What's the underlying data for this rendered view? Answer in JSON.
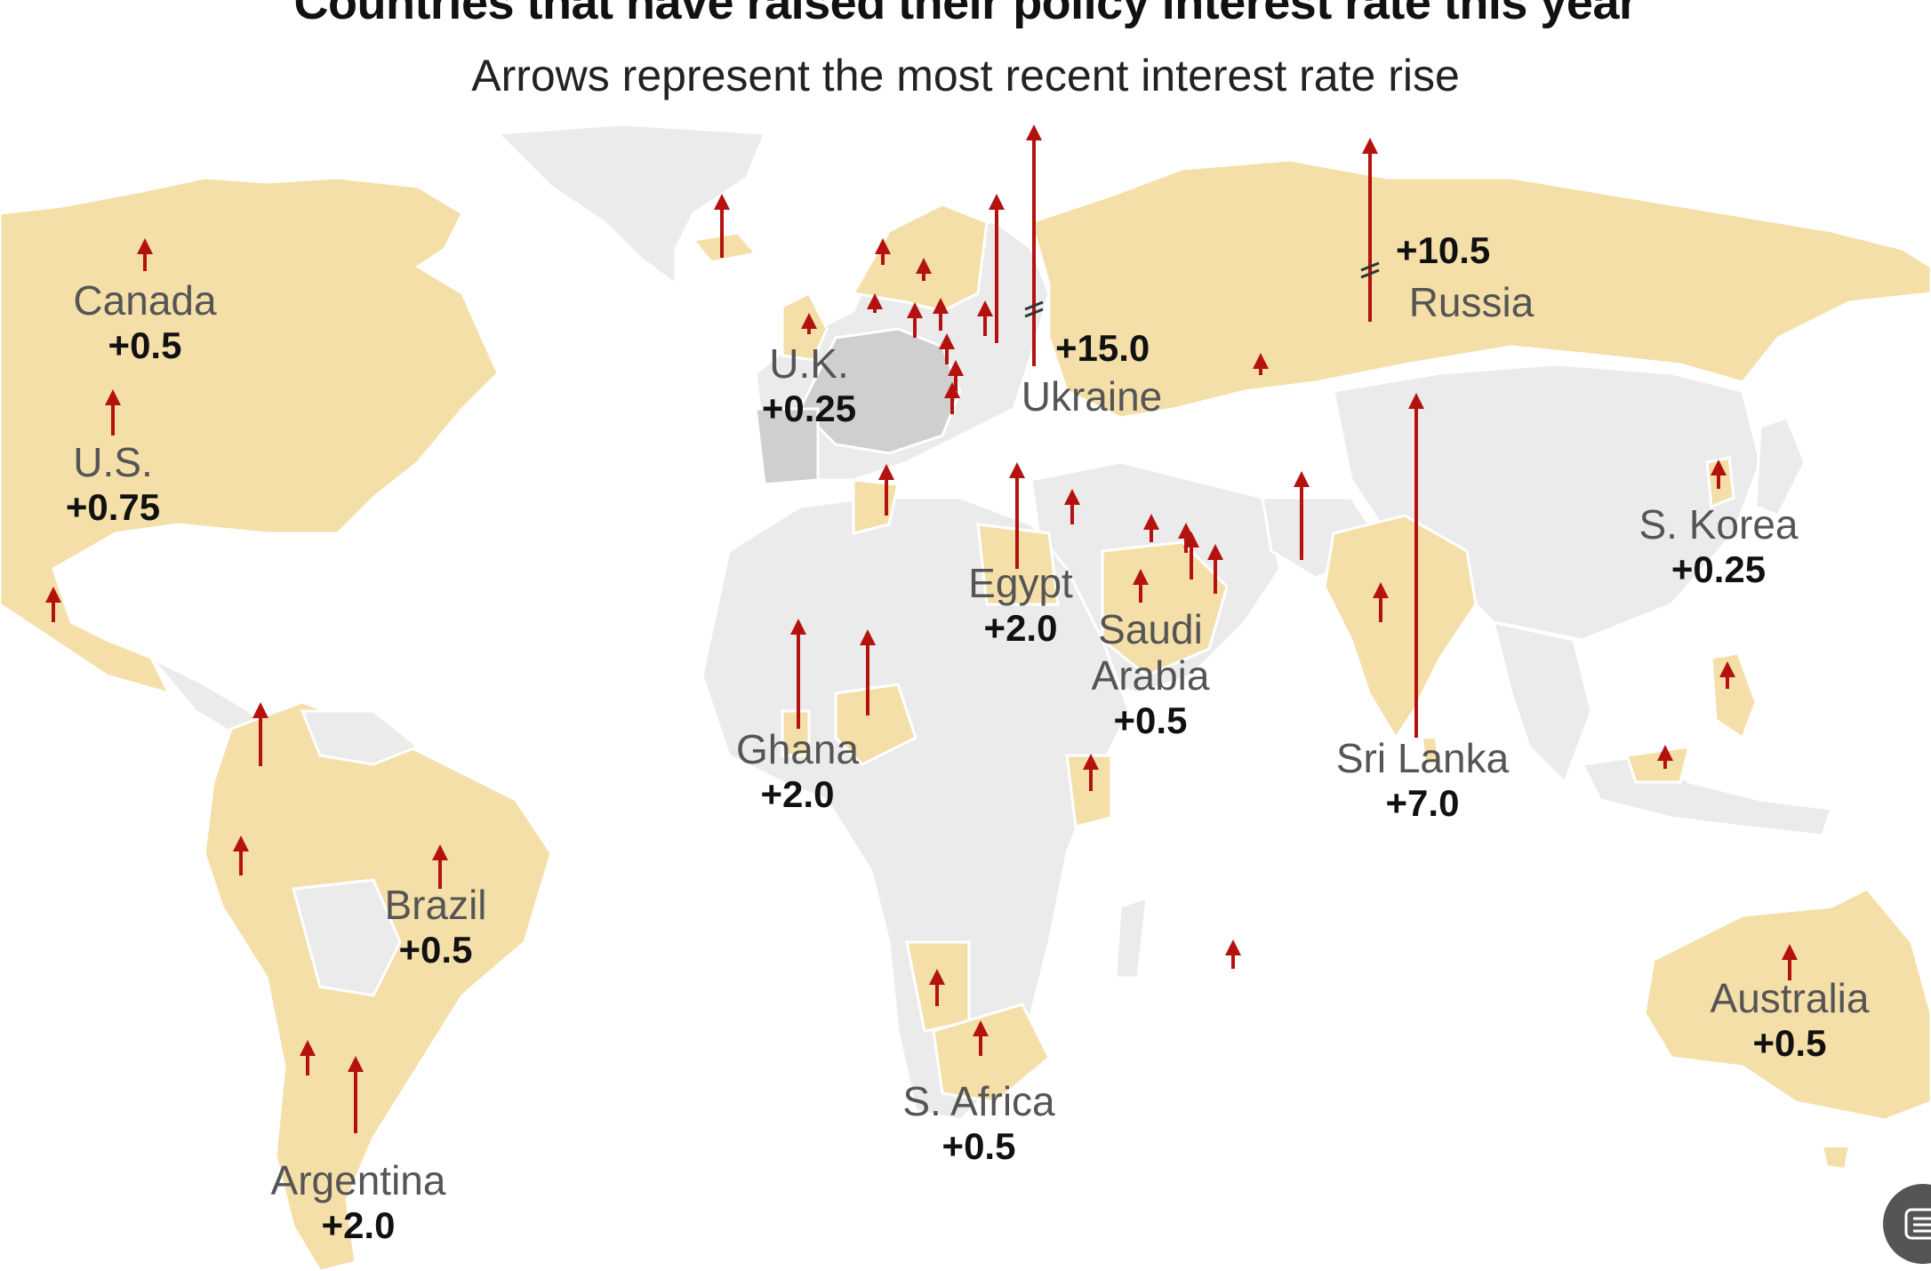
{
  "title": "Countries that have raised their policy interest rate this year",
  "subtitle": "Arrows represent the most recent interest rate rise",
  "colors": {
    "raised": "#f5dfa8",
    "not_raised": "#ebebeb",
    "euro_area": "#cfcfcf",
    "arrow": "#b3120f",
    "ocean": "#ffffff"
  },
  "countries": [
    {
      "id": "canada",
      "name": "Canada",
      "value": "+0.5"
    },
    {
      "id": "us",
      "name": "U.S.",
      "value": "+0.75"
    },
    {
      "id": "uk",
      "name": "U.K.",
      "value": "+0.25"
    },
    {
      "id": "ukraine",
      "name": "Ukraine",
      "value": "+15.0"
    },
    {
      "id": "russia",
      "name": "Russia",
      "value": "+10.5"
    },
    {
      "id": "skorea",
      "name": "S. Korea",
      "value": "+0.25"
    },
    {
      "id": "egypt",
      "name": "Egypt",
      "value": "+2.0"
    },
    {
      "id": "saudi",
      "name": "Saudi\nArabia",
      "value": "+0.5"
    },
    {
      "id": "ghana",
      "name": "Ghana",
      "value": "+2.0"
    },
    {
      "id": "srilanka",
      "name": "Sri Lanka",
      "value": "+7.0"
    },
    {
      "id": "brazil",
      "name": "Brazil",
      "value": "+0.5"
    },
    {
      "id": "argentina",
      "name": "Argentina",
      "value": "+2.0"
    },
    {
      "id": "safrica",
      "name": "S. Africa",
      "value": "+0.5"
    },
    {
      "id": "australia",
      "name": "Australia",
      "value": "+0.5"
    }
  ],
  "icons": {
    "fab": "list-icon"
  }
}
